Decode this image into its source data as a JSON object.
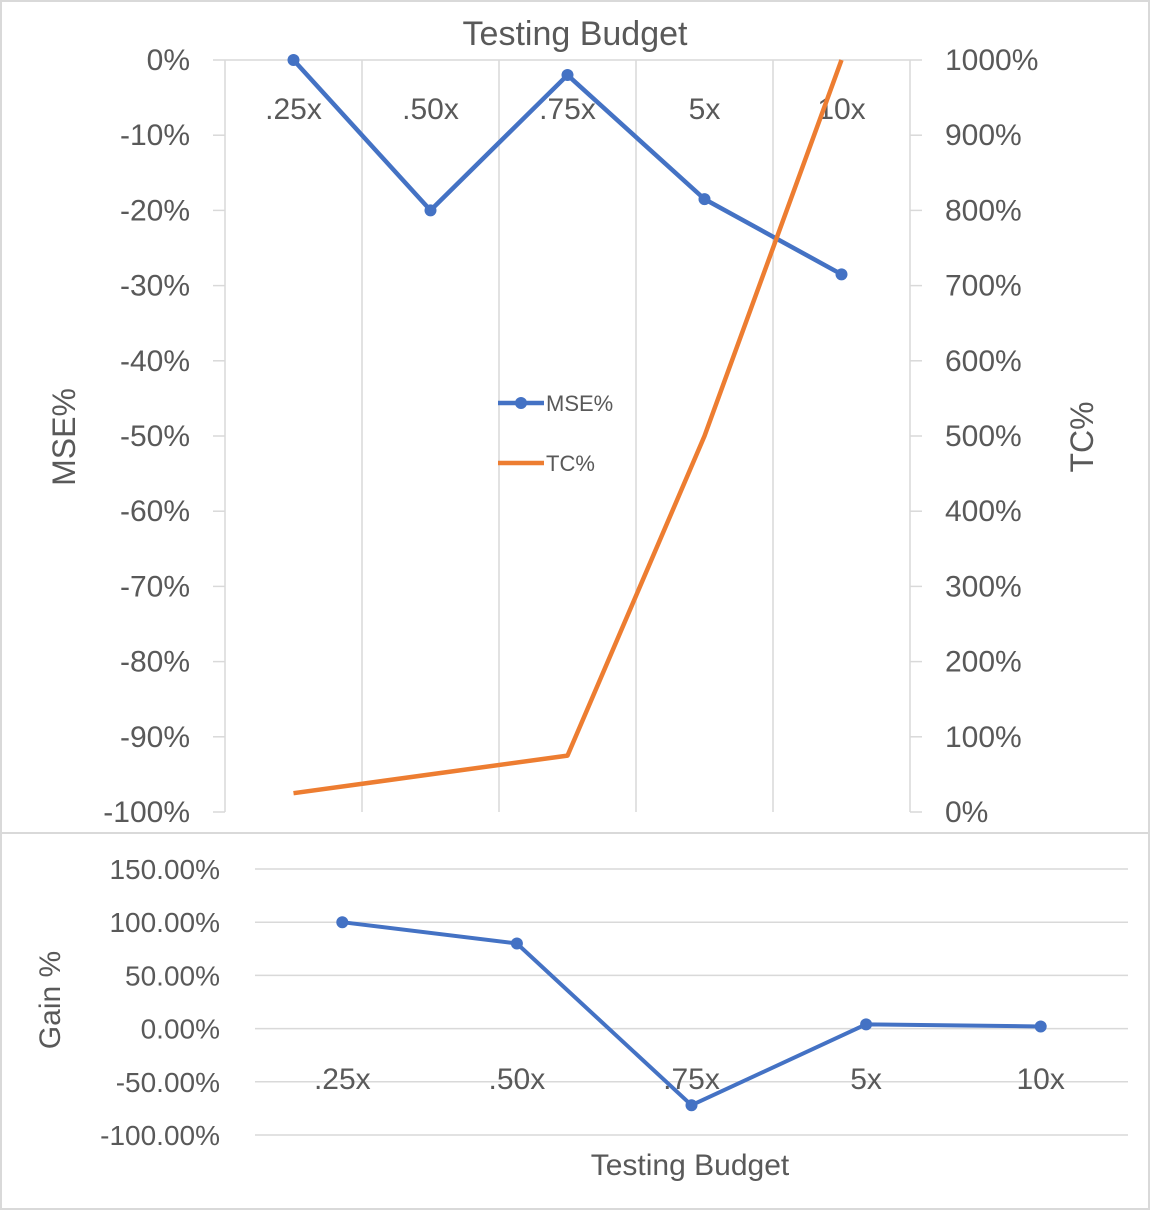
{
  "chart_data": [
    {
      "type": "line",
      "title": "Testing Budget",
      "categories": [
        ".25x",
        ".50x",
        ".75x",
        "5x",
        "10x"
      ],
      "y_left": {
        "label": "MSE%",
        "ylim": [
          -100,
          0
        ],
        "ticks": [
          "0%",
          "-10%",
          "-20%",
          "-30%",
          "-40%",
          "-50%",
          "-60%",
          "-70%",
          "-80%",
          "-90%",
          "-100%"
        ]
      },
      "y_right": {
        "label": "TC%",
        "ylim": [
          0,
          1000
        ],
        "ticks": [
          "1000%",
          "900%",
          "800%",
          "700%",
          "600%",
          "500%",
          "400%",
          "300%",
          "200%",
          "100%",
          "0%"
        ]
      },
      "series": [
        {
          "name": "MSE%",
          "axis": "left",
          "color": "#4472C4",
          "markers": true,
          "values": [
            0,
            -20,
            -2,
            -18.5,
            -28.5
          ]
        },
        {
          "name": "TC%",
          "axis": "right",
          "color": "#ED7D31",
          "markers": false,
          "values": [
            25,
            50,
            75,
            500,
            1000
          ]
        }
      ],
      "legend": "center",
      "grid": "vertical"
    },
    {
      "type": "line",
      "title": "",
      "xlabel": "Testing Budget",
      "ylabel": "Gain %",
      "categories": [
        ".25x",
        ".50x",
        ".75x",
        "5x",
        "10x"
      ],
      "ylim": [
        -100,
        150
      ],
      "ticks": [
        "150.00%",
        "100.00%",
        "50.00%",
        "0.00%",
        "-50.00%",
        "-100.00%"
      ],
      "series": [
        {
          "color": "#4472C4",
          "markers": true,
          "values": [
            100,
            80,
            -72,
            4,
            2
          ]
        }
      ],
      "grid": "horizontal"
    }
  ]
}
